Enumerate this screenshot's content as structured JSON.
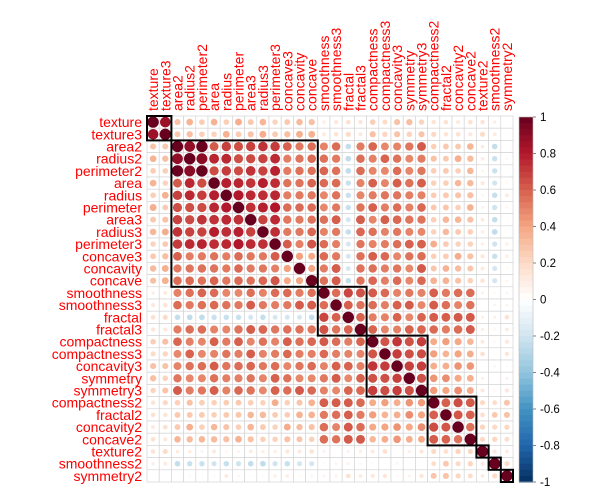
{
  "chart_data": {
    "type": "heatmap",
    "style": "correlation-matrix-circles",
    "title": "",
    "variables": [
      "texture",
      "texture3",
      "area2",
      "radius2",
      "perimeter2",
      "area",
      "radius",
      "perimeter",
      "area3",
      "radius3",
      "perimeter3",
      "concave3",
      "concavity",
      "concave",
      "smoothness",
      "smoothness3",
      "fractal",
      "fractal3",
      "compactness",
      "compactness3",
      "concavity3",
      "symmetry",
      "symmetry3",
      "compactness2",
      "fractal2",
      "concavity2",
      "concave2",
      "texture2",
      "smoothness2",
      "symmetry2"
    ],
    "clusters": [
      [
        0,
        1
      ],
      [
        2,
        13
      ],
      [
        14,
        17
      ],
      [
        18,
        22
      ],
      [
        23,
        26
      ],
      [
        27,
        27
      ],
      [
        28,
        28
      ],
      [
        29,
        29
      ]
    ],
    "colorbar": {
      "range": [
        -1,
        1
      ],
      "ticks": [
        1,
        0.8,
        0.6,
        0.4,
        0.2,
        0,
        -0.2,
        -0.4,
        -0.6,
        -0.8,
        -1
      ],
      "tick_labels": [
        "1",
        "0.8",
        "0.6",
        "0.4",
        "0.2",
        "0",
        "-0.2",
        "-0.4",
        "-0.6",
        "-0.8",
        "-1"
      ],
      "colors": [
        "#67001F",
        "#B2182B",
        "#D6604D",
        "#F4A582",
        "#FDDBC7",
        "#FFFFFF",
        "#D1E5F0",
        "#92C5DE",
        "#4393C3",
        "#2166AC",
        "#053061"
      ]
    },
    "label_color": "#FF0000",
    "grid": true
  }
}
